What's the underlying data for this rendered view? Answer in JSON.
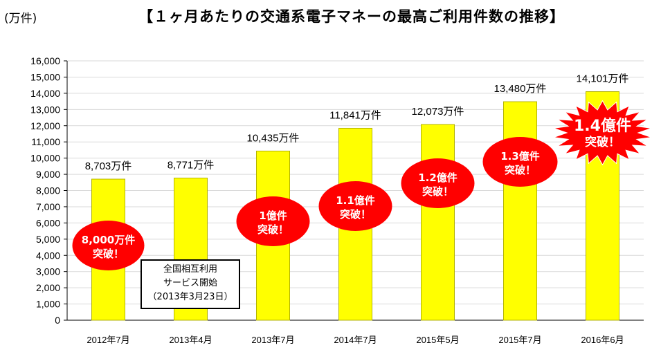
{
  "header": {
    "unit": "(万件)",
    "title": "【１ヶ月あたりの交通系電子マネーの最高ご利用件数の推移】"
  },
  "note": {
    "line1": "全国相互利用",
    "line2": "サービス開始",
    "line3": "（2013年3月23日）"
  },
  "colors": {
    "bar_fill": "#ffff00",
    "bar_stroke": "#b3b300",
    "badge_fill": "#ff0000",
    "badge_text": "#ffffff",
    "gridline": "#d9d9d9"
  },
  "chart_data": {
    "type": "bar",
    "title": "【１ヶ月あたりの交通系電子マネーの最高ご利用件数の推移】",
    "ylabel": "(万件)",
    "xlabel": "",
    "ylim": [
      0,
      16000
    ],
    "yticks": [
      0,
      1000,
      2000,
      3000,
      4000,
      5000,
      6000,
      7000,
      8000,
      9000,
      10000,
      11000,
      12000,
      13000,
      14000,
      15000,
      16000
    ],
    "ytick_labels": [
      "0",
      "1,000",
      "2,000",
      "3,000",
      "4,000",
      "5,000",
      "6,000",
      "7,000",
      "8,000",
      "9,000",
      "10,000",
      "11,000",
      "12,000",
      "13,000",
      "14,000",
      "15,000",
      "16,000"
    ],
    "grid": true,
    "legend": "none",
    "categories": [
      "2012年7月",
      "2013年4月",
      "2013年7月",
      "2014年7月",
      "2015年5月",
      "2015年7月",
      "2016年6月"
    ],
    "values": [
      8703,
      8771,
      10435,
      11841,
      12073,
      13480,
      14101
    ],
    "data_labels": [
      "8,703万件",
      "8,771万件",
      "10,435万件",
      "11,841万件",
      "12,073万件",
      "13,480万件",
      "14,101万件"
    ],
    "annotations": [
      {
        "category_index": 0,
        "lines": [
          "8,000万件",
          "突破！"
        ],
        "shape": "ellipse"
      },
      {
        "category_index": 2,
        "lines": [
          "1億件",
          "突破！"
        ],
        "shape": "ellipse"
      },
      {
        "category_index": 3,
        "lines": [
          "1.1億件",
          "突破！"
        ],
        "shape": "ellipse"
      },
      {
        "category_index": 4,
        "lines": [
          "1.2億件",
          "突破！"
        ],
        "shape": "ellipse"
      },
      {
        "category_index": 5,
        "lines": [
          "1.3億件",
          "突破！"
        ],
        "shape": "ellipse"
      },
      {
        "category_index": 6,
        "lines": [
          "1.4億件",
          "突破！"
        ],
        "shape": "burst"
      }
    ]
  }
}
